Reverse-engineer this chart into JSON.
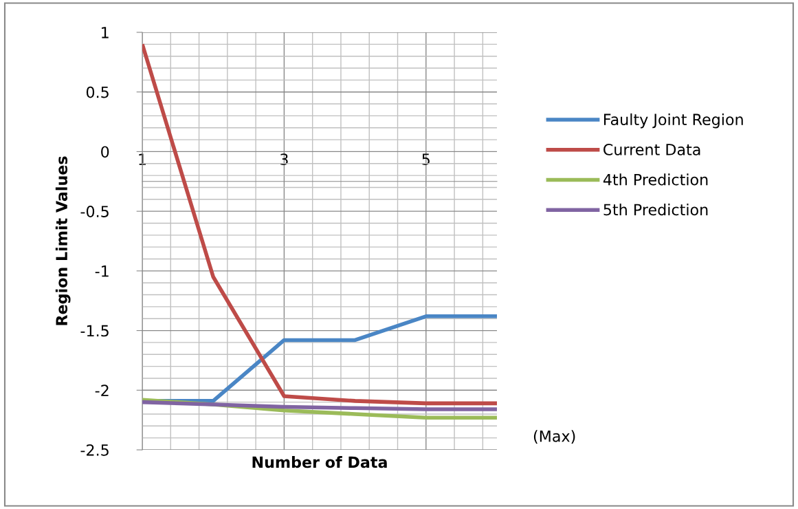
{
  "chart_data": {
    "type": "line",
    "xlabel": "Number of Data",
    "ylabel": "Region Limit Values",
    "x": [
      1,
      2,
      3,
      4,
      5,
      6
    ],
    "series": [
      {
        "name": "Faulty Joint Region",
        "color": "#4a86c5",
        "values": [
          -2.09,
          -2.09,
          -1.58,
          -1.58,
          -1.38,
          -1.38
        ]
      },
      {
        "name": "Current Data",
        "color": "#be4b48",
        "values": [
          0.9,
          -1.05,
          -2.05,
          -2.09,
          -2.11,
          -2.11
        ]
      },
      {
        "name": "4th Prediction",
        "color": "#9bbb59",
        "values": [
          -2.08,
          -2.12,
          -2.17,
          -2.2,
          -2.23,
          -2.23
        ]
      },
      {
        "name": "5th Prediction",
        "color": "#8064a2",
        "values": [
          -2.1,
          -2.12,
          -2.14,
          -2.15,
          -2.16,
          -2.16
        ]
      }
    ],
    "xlim": [
      1,
      6
    ],
    "xticks": [
      1,
      3,
      5
    ],
    "ylim": [
      -2.5,
      1
    ],
    "yticks": [
      -2.5,
      -2,
      -1.5,
      -1,
      -0.5,
      0,
      0.5,
      1
    ],
    "grid": true,
    "legend": "right",
    "marker": "none",
    "line_style": "solid",
    "annotations": [
      "(Max)"
    ]
  }
}
